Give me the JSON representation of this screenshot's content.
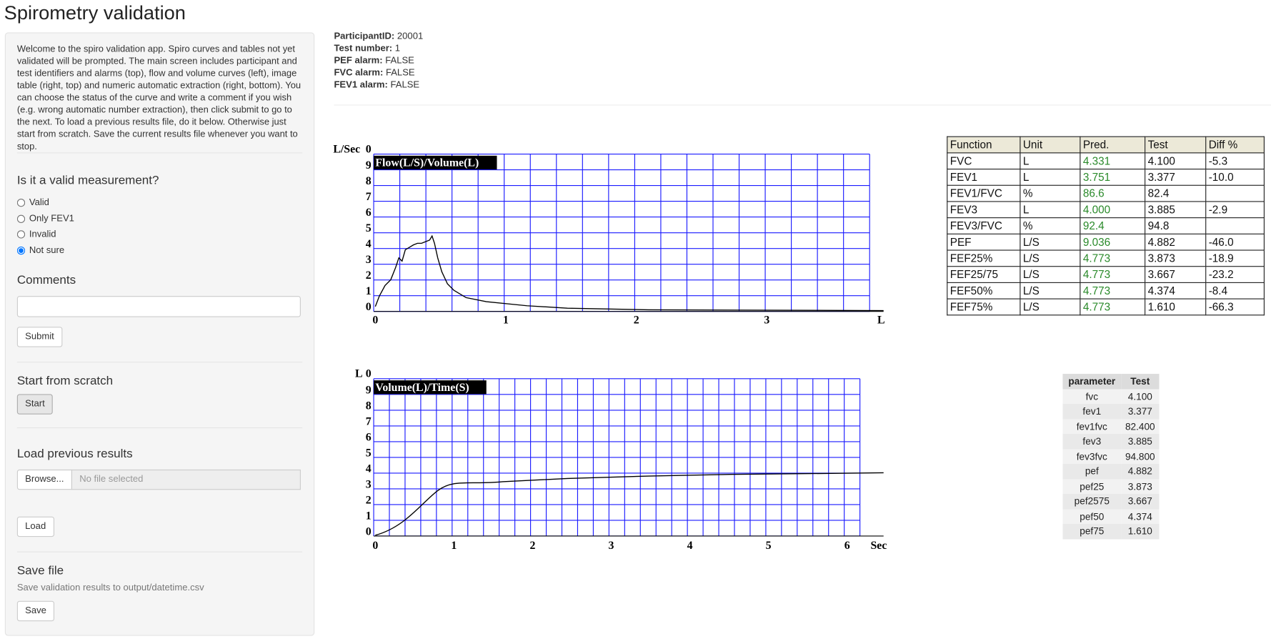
{
  "title": "Spirometry validation",
  "sidebar": {
    "intro": "Welcome to the spiro validation app. Spiro curves and tables not yet validated will be prompted. The main screen includes participant and test identifiers and alarms (top), flow and volume curves (left), image table (right, top) and numeric automatic extraction (right, bottom). You can choose the status of the curve and write a comment if you wish (e.g. wrong automatic number extraction), then click submit to go to the next. To load a previous results file, do it below. Otherwise just start from scratch. Save the current results file whenever you want to stop.",
    "valid_question": "Is it a valid measurement?",
    "options": [
      "Valid",
      "Only FEV1",
      "Invalid",
      "Not sure"
    ],
    "selected": "Not sure",
    "comments_label": "Comments",
    "submit": "Submit",
    "scratch_label": "Start from scratch",
    "start": "Start",
    "load_label": "Load previous results",
    "browse": "Browse...",
    "file_placeholder": "No file selected",
    "load": "Load",
    "save_label": "Save file",
    "save_help": "Save validation results to output/datetime.csv",
    "save": "Save"
  },
  "info": [
    {
      "label": "ParticipantID:",
      "value": "20001"
    },
    {
      "label": "Test number:",
      "value": "1"
    },
    {
      "label": "PEF alarm:",
      "value": "FALSE"
    },
    {
      "label": "FVC alarm:",
      "value": "FALSE"
    },
    {
      "label": "FEV1 alarm:",
      "value": "FALSE"
    }
  ],
  "plots": [
    {
      "title": "Flow(L/S)/Volume(L)",
      "y_unit": "L/Sec",
      "y_labels": [
        "0",
        "9",
        "8",
        "7",
        "6",
        "5",
        "4",
        "3",
        "2",
        "1",
        "0"
      ],
      "x_labels": [
        "0",
        "1",
        "2",
        "3"
      ],
      "x_unit": "L"
    },
    {
      "title": "Volume(L)/Time(S)",
      "y_unit": "L",
      "y_labels": [
        "0",
        "9",
        "8",
        "7",
        "6",
        "5",
        "4",
        "3",
        "2",
        "1",
        "0"
      ],
      "x_labels": [
        "0",
        "1",
        "2",
        "3",
        "4",
        "5",
        "6"
      ],
      "x_unit": "Sec"
    }
  ],
  "function_table": {
    "header": [
      "Function",
      "Unit",
      "Pred.",
      "Test",
      "Diff %"
    ],
    "rows": [
      [
        "FVC",
        "L",
        "4.331",
        "4.100",
        "-5.3"
      ],
      [
        "FEV1",
        "L",
        "3.751",
        "3.377",
        "-10.0"
      ],
      [
        "FEV1/FVC",
        "%",
        "86.6",
        "82.4"
      ],
      [
        "FEV3",
        "L",
        "4.000",
        "3.885",
        "-2.9"
      ],
      [
        "FEV3/FVC",
        "%",
        "92.4",
        "94.8"
      ],
      [
        "PEF",
        "L/S",
        "9.036",
        "4.882",
        "-46.0"
      ],
      [
        "FEF25%",
        "L/S",
        "4.773",
        "3.873",
        "-18.9"
      ],
      [
        "FEF25/75",
        "L/S",
        "4.773",
        "3.667",
        "-23.2"
      ],
      [
        "FEF50%",
        "L/S",
        "4.773",
        "4.374",
        "-8.4"
      ],
      [
        "FEF75%",
        "L/S",
        "4.773",
        "1.610",
        "-66.3"
      ]
    ]
  },
  "param_table": {
    "header": [
      "parameter",
      "Test"
    ],
    "rows": [
      [
        "fvc",
        "4.100"
      ],
      [
        "fev1",
        "3.377"
      ],
      [
        "fev1fvc",
        "82.400"
      ],
      [
        "fev3",
        "3.885"
      ],
      [
        "fev3fvc",
        "94.800"
      ],
      [
        "pef",
        "4.882"
      ],
      [
        "pef25",
        "3.873"
      ],
      [
        "pef2575",
        "3.667"
      ],
      [
        "pef50",
        "4.374"
      ],
      [
        "pef75",
        "1.610"
      ]
    ]
  }
}
